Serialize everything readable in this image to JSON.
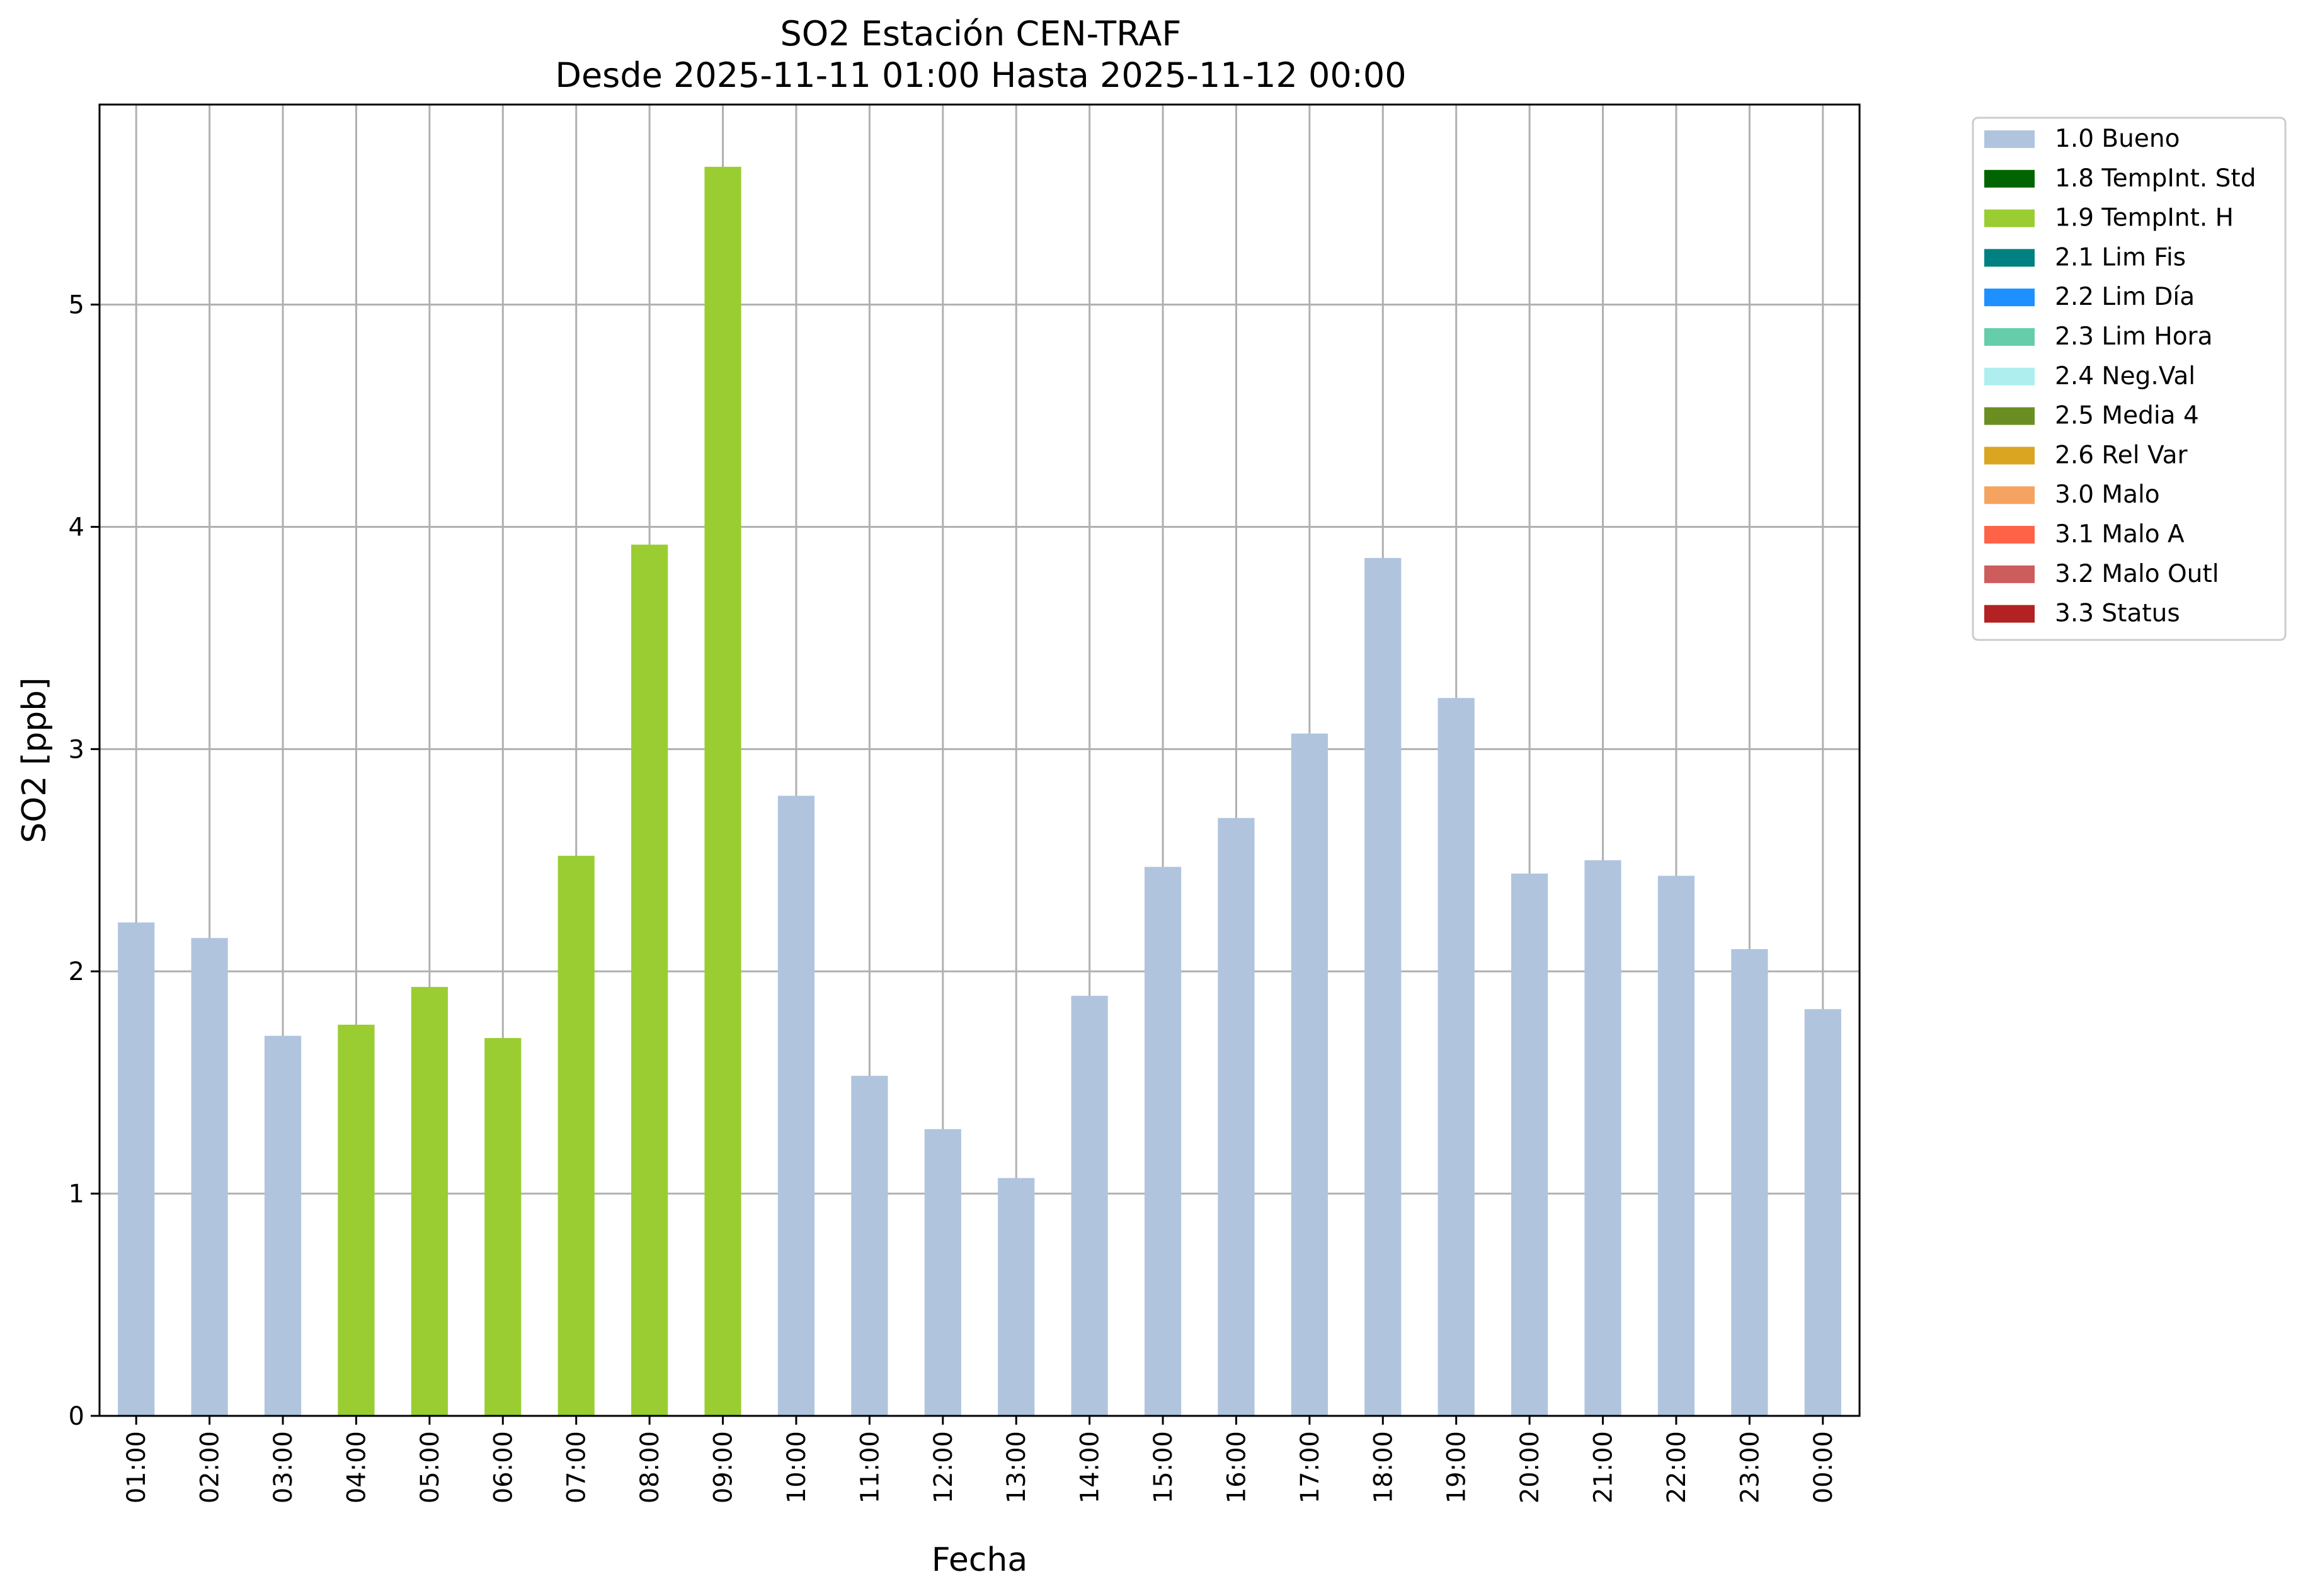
{
  "chart_data": {
    "type": "bar",
    "title": "SO2 Estación CEN-TRAF",
    "subtitle": "Desde 2025-11-11 01:00 Hasta 2025-11-12 00:00",
    "xlabel": "Fecha",
    "ylabel": "SO2 [ppb]",
    "ylim": [
      0,
      5.9
    ],
    "yticks": [
      "0",
      "1",
      "2",
      "3",
      "4",
      "5"
    ],
    "grid": true,
    "legend_position": "outside-top-right",
    "categories": [
      "01:00",
      "02:00",
      "03:00",
      "04:00",
      "05:00",
      "06:00",
      "07:00",
      "08:00",
      "09:00",
      "10:00",
      "11:00",
      "12:00",
      "13:00",
      "14:00",
      "15:00",
      "16:00",
      "17:00",
      "18:00",
      "19:00",
      "20:00",
      "21:00",
      "22:00",
      "23:00",
      "00:00"
    ],
    "values": [
      2.22,
      2.15,
      1.71,
      1.76,
      1.93,
      1.7,
      2.52,
      3.92,
      5.62,
      2.79,
      1.53,
      1.29,
      1.07,
      1.89,
      2.47,
      2.69,
      3.07,
      3.86,
      3.23,
      2.44,
      2.5,
      2.43,
      2.1,
      1.83
    ],
    "flags": [
      "1.0",
      "1.0",
      "1.0",
      "1.9",
      "1.9",
      "1.9",
      "1.9",
      "1.9",
      "1.9",
      "1.0",
      "1.0",
      "1.0",
      "1.0",
      "1.0",
      "1.0",
      "1.0",
      "1.0",
      "1.0",
      "1.0",
      "1.0",
      "1.0",
      "1.0",
      "1.0",
      "1.0"
    ],
    "legend": [
      {
        "code": "1.0",
        "label": "1.0 Bueno",
        "color": "#b0c4de"
      },
      {
        "code": "1.8",
        "label": "1.8 TempInt. Std",
        "color": "#006400"
      },
      {
        "code": "1.9",
        "label": "1.9 TempInt. H",
        "color": "#9acd32"
      },
      {
        "code": "2.1",
        "label": "2.1 Lim Fis",
        "color": "#008080"
      },
      {
        "code": "2.2",
        "label": "2.2 Lim Día",
        "color": "#1e90ff"
      },
      {
        "code": "2.3",
        "label": "2.3 Lim Hora",
        "color": "#66cdaa"
      },
      {
        "code": "2.4",
        "label": "2.4 Neg.Val",
        "color": "#afeeee"
      },
      {
        "code": "2.5",
        "label": "2.5 Media 4",
        "color": "#6b8e23"
      },
      {
        "code": "2.6",
        "label": "2.6 Rel Var",
        "color": "#daa520"
      },
      {
        "code": "3.0",
        "label": "3.0 Malo",
        "color": "#f4a460"
      },
      {
        "code": "3.1",
        "label": "3.1 Malo A",
        "color": "#ff6347"
      },
      {
        "code": "3.2",
        "label": "3.2 Malo Outl",
        "color": "#cd5c5c"
      },
      {
        "code": "3.3",
        "label": "3.3 Status",
        "color": "#b22222"
      }
    ]
  }
}
